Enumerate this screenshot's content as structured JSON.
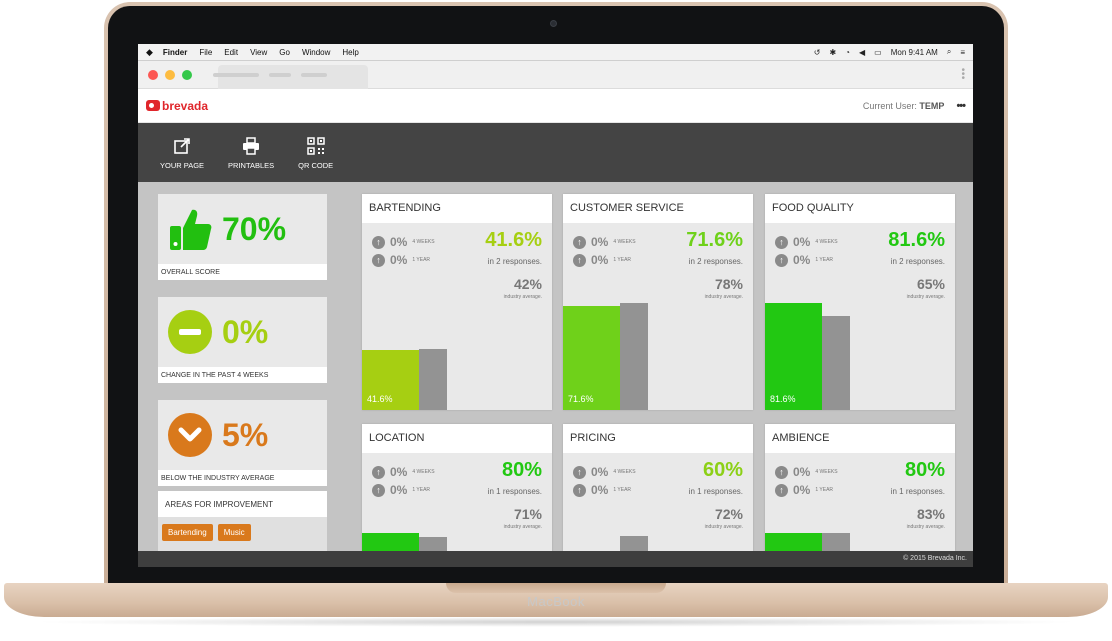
{
  "device": {
    "brand": "MacBook"
  },
  "menubar": {
    "apple": "",
    "items": [
      "Finder",
      "File",
      "Edit",
      "View",
      "Go",
      "Window",
      "Help"
    ],
    "clock": "Mon 9:41 AM"
  },
  "header": {
    "logo_text": "brevada",
    "user_label": "Current User:",
    "user_name": "TEMP",
    "menu_dots": "•••"
  },
  "toolbar": {
    "your_page": "YOUR PAGE",
    "printables": "PRINTABLES",
    "qr_code": "QR CODE"
  },
  "summary": {
    "overall": {
      "value": "70%",
      "label": "OVERALL SCORE",
      "color": "#22bf10"
    },
    "change": {
      "value": "0%",
      "label": "CHANGE IN THE PAST 4 WEEKS",
      "color": "#a6cf12"
    },
    "industry": {
      "value": "5%",
      "label": "BELOW THE INDUSTRY AVERAGE",
      "color": "#d9791c"
    }
  },
  "improvement": {
    "title": "AREAS FOR IMPROVEMENT",
    "tags": [
      "Bartending",
      "Music"
    ]
  },
  "cards": [
    {
      "title": "BARTENDING",
      "weeks": "0%",
      "weeks_label": "4 WEEKS",
      "year": "0%",
      "year_label": "1 YEAR",
      "score": "41.6%",
      "responses": "in 2 responses.",
      "industry": "42%",
      "industry_label": "industry average.",
      "score_value": 41.6,
      "industry_value": 42,
      "bar_label": "41.6%",
      "color": "#a6cf12"
    },
    {
      "title": "CUSTOMER SERVICE",
      "weeks": "0%",
      "weeks_label": "4 WEEKS",
      "year": "0%",
      "year_label": "1 YEAR",
      "score": "71.6%",
      "responses": "in 2 responses.",
      "industry": "78%",
      "industry_label": "industry average.",
      "score_value": 71.6,
      "industry_value": 78,
      "bar_label": "71.6%",
      "color": "#6fd11a"
    },
    {
      "title": "FOOD QUALITY",
      "weeks": "0%",
      "weeks_label": "4 WEEKS",
      "year": "0%",
      "year_label": "1 YEAR",
      "score": "81.6%",
      "responses": "in 2 responses.",
      "industry": "65%",
      "industry_label": "industry average.",
      "score_value": 81.6,
      "industry_value": 65,
      "bar_label": "81.6%",
      "color": "#22c812"
    },
    {
      "title": "LOCATION",
      "weeks": "0%",
      "weeks_label": "4 WEEKS",
      "year": "0%",
      "year_label": "1 YEAR",
      "score": "80%",
      "responses": "in 1 responses.",
      "industry": "71%",
      "industry_label": "industry average.",
      "score_value": 80,
      "industry_value": 71,
      "bar_label": "",
      "color": "#22c812"
    },
    {
      "title": "PRICING",
      "weeks": "0%",
      "weeks_label": "4 WEEKS",
      "year": "0%",
      "year_label": "1 YEAR",
      "score": "60%",
      "responses": "in 1 responses.",
      "industry": "72%",
      "industry_label": "industry average.",
      "score_value": 60,
      "industry_value": 72,
      "bar_label": "",
      "color": "#8cd016"
    },
    {
      "title": "AMBIENCE",
      "weeks": "0%",
      "weeks_label": "4 WEEKS",
      "year": "0%",
      "year_label": "1 YEAR",
      "score": "80%",
      "responses": "in 1 responses.",
      "industry": "83%",
      "industry_label": "industry average.",
      "score_value": 80,
      "industry_value": 83,
      "bar_label": "",
      "color": "#22c812"
    }
  ],
  "footer": {
    "copyright": "© 2015 Brevada Inc."
  }
}
